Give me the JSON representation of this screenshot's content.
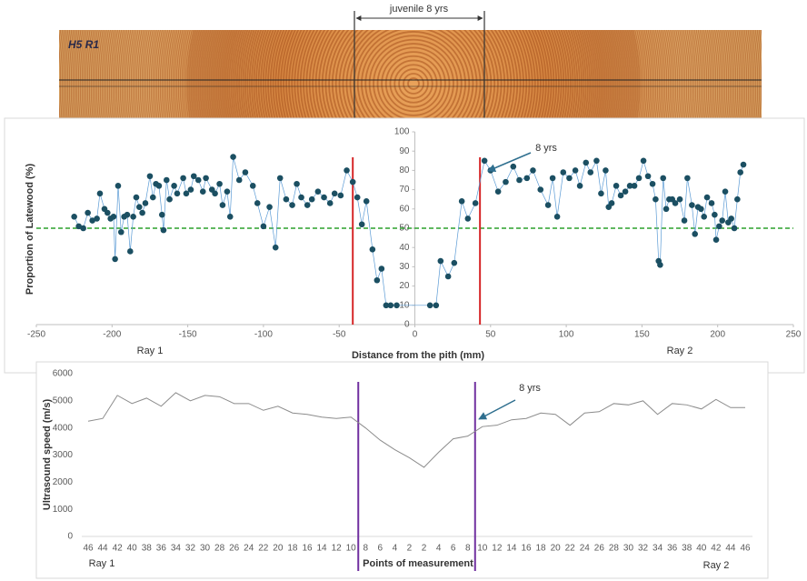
{
  "photo": {
    "annotation": "juvenile 8 yrs",
    "label": "H5 R1"
  },
  "chart_data": [
    {
      "type": "scatter",
      "xlabel": "Distance from the pith (mm)",
      "ylabel": "Proportion of Latewood (%)",
      "xlim": [
        -250,
        250
      ],
      "xticks": [
        -250,
        -200,
        -150,
        -100,
        -50,
        0,
        50,
        100,
        150,
        200,
        250
      ],
      "ylim": [
        0,
        100
      ],
      "yticks": [
        0,
        10,
        20,
        30,
        40,
        50,
        60,
        70,
        80,
        90,
        100
      ],
      "color": "#1b4f62",
      "line_color": "#5b9bd5",
      "hline": 50,
      "hline_color": "#2ca02c",
      "vlines": [
        -41,
        43
      ],
      "vline_color": "#d62728",
      "annotations": [
        "Ray 1",
        "Ray 2",
        "8 yrs"
      ],
      "x": [
        -225,
        -222,
        -219,
        -216,
        -213,
        -210,
        -208,
        -205,
        -203,
        -201,
        -199,
        -198,
        -196,
        -194,
        -192,
        -190,
        -188,
        -186,
        -184,
        -182,
        -180,
        -178,
        -175,
        -173,
        -171,
        -169,
        -167,
        -166,
        -164,
        -162,
        -159,
        -157,
        -153,
        -151,
        -148,
        -146,
        -143,
        -140,
        -138,
        -134,
        -132,
        -129,
        -127,
        -124,
        -122,
        -120,
        -116,
        -112,
        -107,
        -104,
        -100,
        -96,
        -92,
        -89,
        -85,
        -81,
        -78,
        -75,
        -71,
        -68,
        -64,
        -60,
        -56,
        -53,
        -49,
        -45,
        -41,
        -38,
        -35,
        -32,
        -28,
        -25,
        -22,
        -19,
        -16,
        -12,
        10,
        14,
        17,
        22,
        26,
        31,
        35,
        40,
        46,
        50,
        55,
        60,
        65,
        69,
        74,
        78,
        83,
        88,
        91,
        94,
        98,
        102,
        106,
        109,
        113,
        116,
        120,
        123,
        126,
        128,
        130,
        133,
        136,
        139,
        142,
        145,
        148,
        151,
        154,
        157,
        159,
        161,
        162,
        164,
        166,
        168,
        170,
        172,
        175,
        178,
        180,
        183,
        185,
        187,
        189,
        191,
        193,
        196,
        198,
        199,
        201,
        203,
        205,
        207,
        209,
        211,
        213,
        215,
        217
      ],
      "values": [
        56,
        51,
        50,
        58,
        54,
        55,
        68,
        60,
        58,
        55,
        56,
        34,
        72,
        48,
        56,
        57,
        38,
        56,
        66,
        61,
        58,
        63,
        77,
        66,
        73,
        72,
        57,
        49,
        75,
        65,
        72,
        68,
        76,
        68,
        70,
        77,
        75,
        69,
        76,
        70,
        68,
        73,
        62,
        69,
        56,
        87,
        75,
        79,
        72,
        63,
        51,
        61,
        40,
        76,
        65,
        62,
        73,
        66,
        62,
        65,
        69,
        66,
        63,
        68,
        67,
        80,
        74,
        66,
        52,
        64,
        39,
        23,
        29,
        10,
        10,
        10,
        10,
        10,
        33,
        25,
        32,
        64,
        55,
        63,
        85,
        80,
        69,
        74,
        82,
        75,
        76,
        80,
        70,
        62,
        76,
        56,
        79,
        76,
        80,
        72,
        84,
        79,
        85,
        68,
        80,
        61,
        63,
        72,
        67,
        69,
        72,
        72,
        76,
        85,
        77,
        73,
        65,
        33,
        31,
        76,
        60,
        65,
        65,
        63,
        65,
        54,
        76,
        62,
        47,
        61,
        60,
        56,
        66,
        63,
        57,
        44,
        51,
        54,
        69,
        53,
        55,
        50,
        65,
        79,
        83
      ]
    },
    {
      "type": "line",
      "xlabel": "Points of measurement",
      "ylabel": "Ultrasound speed (m/s)",
      "ylim": [
        0,
        6000
      ],
      "yticks": [
        0,
        1000,
        2000,
        3000,
        4000,
        5000,
        6000
      ],
      "color": "#8c8c8c",
      "vlines": [
        18.5,
        26.5
      ],
      "vline_color": "#7030a0",
      "annotations": [
        "Ray 1",
        "Ray 2",
        "8 yrs"
      ],
      "categories": [
        "46",
        "44",
        "42",
        "40",
        "38",
        "36",
        "34",
        "32",
        "30",
        "28",
        "26",
        "24",
        "22",
        "20",
        "18",
        "16",
        "14",
        "12",
        "10",
        "8",
        "6",
        "4",
        "2",
        "2",
        "4",
        "6",
        "8",
        "10",
        "12",
        "14",
        "16",
        "18",
        "20",
        "22",
        "24",
        "26",
        "28",
        "30",
        "32",
        "34",
        "36",
        "38",
        "40",
        "42",
        "44",
        "46"
      ],
      "values": [
        4250,
        4350,
        5200,
        4900,
        5100,
        4800,
        5300,
        5000,
        5200,
        5150,
        4900,
        4900,
        4650,
        4800,
        4550,
        4500,
        4400,
        4350,
        4400,
        4000,
        3550,
        3200,
        2900,
        2550,
        3100,
        3600,
        3700,
        4050,
        4100,
        4300,
        4350,
        4550,
        4500,
        4100,
        4550,
        4600,
        4900,
        4850,
        5000,
        4500,
        4900,
        4850,
        4700,
        5050,
        4750,
        4750
      ]
    }
  ]
}
